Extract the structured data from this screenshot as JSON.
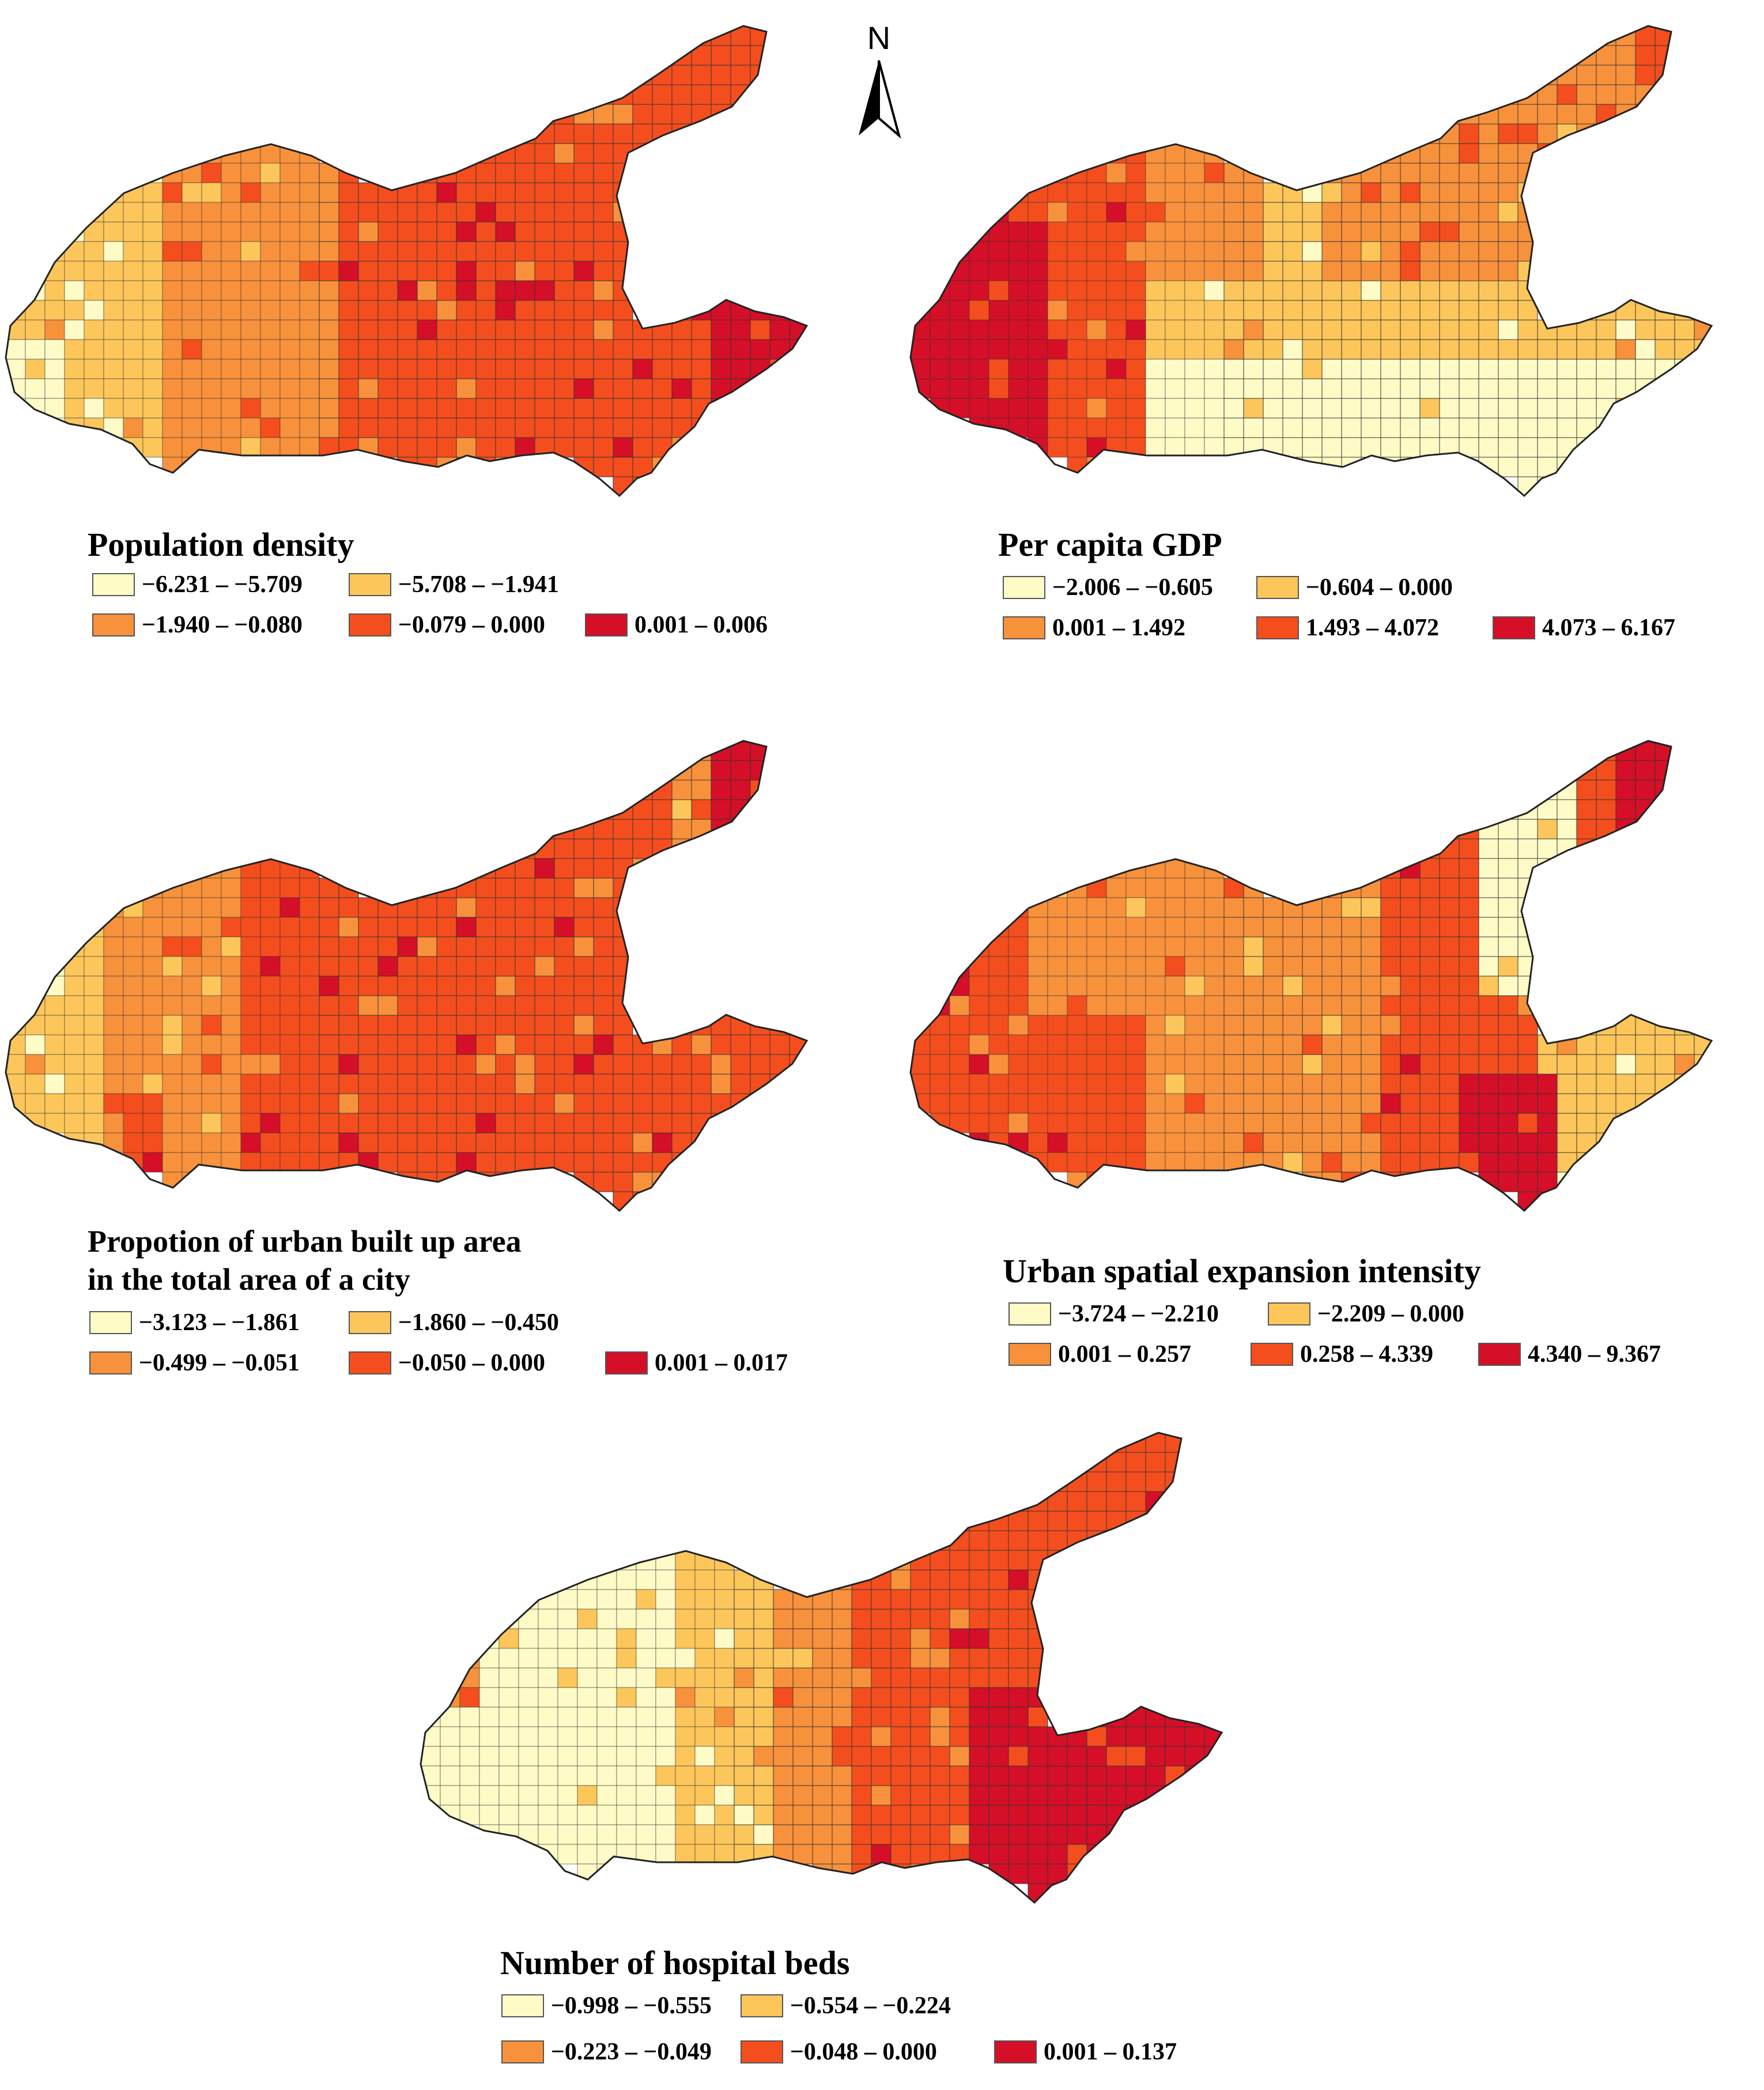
{
  "north_arrow": {
    "label": "N",
    "icon": "north-arrow-icon"
  },
  "palette": [
    "#FFFBC6",
    "#FCC65A",
    "#F8913B",
    "#F44E1E",
    "#D50F27"
  ],
  "panels": [
    {
      "title_lines": [
        "Population density"
      ],
      "legend": [
        {
          "label": "−6.231 – −5.709",
          "color": "#FFFBC6"
        },
        {
          "label": "−5.708 – −1.941",
          "color": "#FCC65A"
        },
        {
          "label": "−1.940 – −0.080",
          "color": "#F8913B"
        },
        {
          "label": "−0.079 – 0.000",
          "color": "#F44E1E"
        },
        {
          "label": "0.001 – 0.006",
          "color": "#D50F27"
        }
      ]
    },
    {
      "title_lines": [
        "Per capita GDP"
      ],
      "legend": [
        {
          "label": "−2.006 – −0.605",
          "color": "#FFFBC6"
        },
        {
          "label": "−0.604 – 0.000",
          "color": "#FCC65A"
        },
        {
          "label": "0.001 – 1.492",
          "color": "#F8913B"
        },
        {
          "label": "1.493 – 4.072",
          "color": "#F44E1E"
        },
        {
          "label": "4.073 – 6.167",
          "color": "#D50F27"
        }
      ]
    },
    {
      "title_lines": [
        "Propotion of urban built up area",
        "in the total area of a city"
      ],
      "legend": [
        {
          "label": "−3.123 – −1.861",
          "color": "#FFFBC6"
        },
        {
          "label": "−1.860 – −0.450",
          "color": "#FCC65A"
        },
        {
          "label": "−0.499 – −0.051",
          "color": "#F8913B"
        },
        {
          "label": "−0.050 – 0.000",
          "color": "#F44E1E"
        },
        {
          "label": "0.001 – 0.017",
          "color": "#D50F27"
        }
      ]
    },
    {
      "title_lines": [
        "Urban spatial expansion intensity"
      ],
      "legend": [
        {
          "label": "−3.724 – −2.210",
          "color": "#FFFBC6"
        },
        {
          "label": "−2.209 – 0.000",
          "color": "#FCC65A"
        },
        {
          "label": "0.001 – 0.257",
          "color": "#F8913B"
        },
        {
          "label": "0.258 – 4.339",
          "color": "#F44E1E"
        },
        {
          "label": "4.340 – 9.367",
          "color": "#D50F27"
        }
      ]
    },
    {
      "title_lines": [
        "Number of hospital beds"
      ],
      "legend": [
        {
          "label": "−0.998 – −0.555",
          "color": "#FFFBC6"
        },
        {
          "label": "−0.554 – −0.224",
          "color": "#FCC65A"
        },
        {
          "label": "−0.223 – −0.049",
          "color": "#F8913B"
        },
        {
          "label": "−0.048 – 0.000",
          "color": "#F44E1E"
        },
        {
          "label": "0.001 – 0.137",
          "color": "#D50F27"
        }
      ]
    }
  ]
}
